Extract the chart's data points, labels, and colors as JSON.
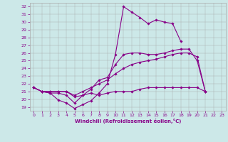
{
  "xlabel": "Windchill (Refroidissement éolien,°C)",
  "background_color": "#cce8e8",
  "line_color": "#880088",
  "xlim": [
    -0.5,
    23.5
  ],
  "ylim": [
    18.5,
    32.5
  ],
  "yticks": [
    19,
    20,
    21,
    22,
    23,
    24,
    25,
    26,
    27,
    28,
    29,
    30,
    31,
    32
  ],
  "xticks": [
    0,
    1,
    2,
    3,
    4,
    5,
    6,
    7,
    8,
    9,
    10,
    11,
    12,
    13,
    14,
    15,
    16,
    17,
    18,
    19,
    20,
    21,
    22,
    23
  ],
  "series": [
    [
      21.5,
      21.0,
      20.8,
      19.9,
      19.5,
      18.8,
      19.3,
      19.8,
      20.8,
      22.0,
      25.8,
      32.0,
      31.3,
      30.6,
      29.8,
      30.3,
      30.0,
      29.8,
      27.5,
      null,
      null,
      null,
      null,
      null
    ],
    [
      21.5,
      21.0,
      20.8,
      20.8,
      20.5,
      19.5,
      20.5,
      21.3,
      22.5,
      22.8,
      24.5,
      25.8,
      26.0,
      26.0,
      25.8,
      25.8,
      26.0,
      26.3,
      26.5,
      26.5,
      25.0,
      21.0,
      null,
      null
    ],
    [
      21.5,
      21.0,
      21.0,
      21.0,
      21.0,
      20.5,
      21.0,
      21.5,
      22.0,
      22.5,
      23.3,
      24.0,
      24.5,
      24.8,
      25.0,
      25.2,
      25.5,
      25.8,
      26.0,
      26.0,
      25.5,
      21.0,
      null,
      null
    ],
    [
      21.5,
      21.0,
      21.0,
      21.0,
      21.0,
      20.3,
      20.5,
      20.8,
      20.5,
      20.8,
      21.0,
      21.0,
      21.0,
      21.3,
      21.5,
      21.5,
      21.5,
      21.5,
      21.5,
      21.5,
      21.5,
      21.0,
      null,
      null
    ]
  ],
  "marker": "D",
  "marker_size": 1.8,
  "linewidth": 0.8,
  "grid_color": "#aaaaaa",
  "font_color": "#880088",
  "tick_fontsize": 4.5,
  "xlabel_fontsize": 5.0
}
